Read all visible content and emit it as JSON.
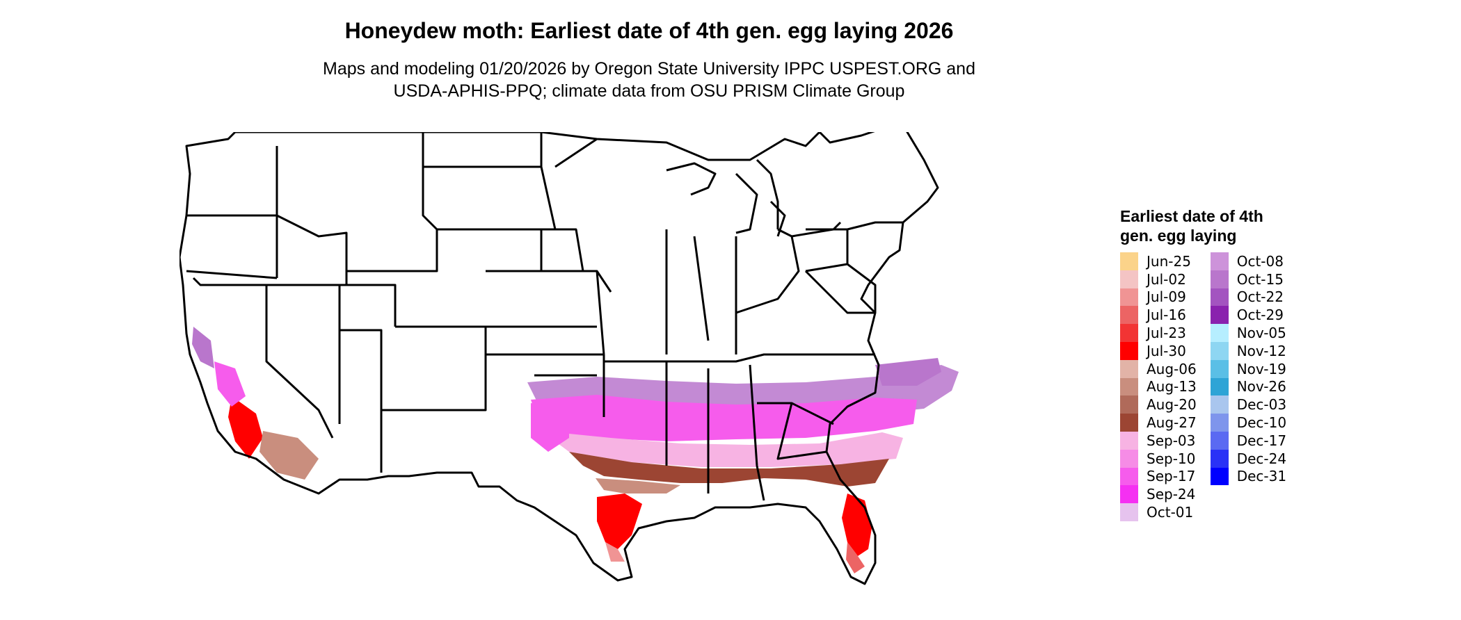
{
  "title": "Honeydew moth: Earliest date of 4th gen. egg laying 2026",
  "subtitle_line1": "Maps and modeling 01/20/2026 by Oregon State University IPPC USPEST.ORG and",
  "subtitle_line2": "USDA-APHIS-PPQ; climate data from OSU PRISM Climate Group",
  "legend": {
    "title": "Earliest date of 4th gen. egg laying",
    "items": [
      {
        "label": "Jun-25",
        "color": "#FBD38A"
      },
      {
        "label": "Jul-02",
        "color": "#F4C4C4"
      },
      {
        "label": "Jul-09",
        "color": "#F09494"
      },
      {
        "label": "Jul-16",
        "color": "#EC6464"
      },
      {
        "label": "Jul-23",
        "color": "#F23434"
      },
      {
        "label": "Jul-30",
        "color": "#FF0000"
      },
      {
        "label": "Aug-06",
        "color": "#E2B3A7"
      },
      {
        "label": "Aug-13",
        "color": "#C98E7E"
      },
      {
        "label": "Aug-20",
        "color": "#B06A5A"
      },
      {
        "label": "Aug-27",
        "color": "#9C4533"
      },
      {
        "label": "Sep-03",
        "color": "#F7B3E3"
      },
      {
        "label": "Sep-10",
        "color": "#F68CE6"
      },
      {
        "label": "Sep-17",
        "color": "#F65CEC"
      },
      {
        "label": "Sep-24",
        "color": "#F530F2"
      },
      {
        "label": "Oct-01",
        "color": "#E6C3EE"
      },
      {
        "label": "Oct-08",
        "color": "#CD93DA"
      },
      {
        "label": "Oct-15",
        "color": "#B976CC"
      },
      {
        "label": "Oct-22",
        "color": "#A354C0"
      },
      {
        "label": "Oct-29",
        "color": "#8A22AE"
      },
      {
        "label": "Nov-05",
        "color": "#B6EEFF"
      },
      {
        "label": "Nov-12",
        "color": "#8ED6F2"
      },
      {
        "label": "Nov-19",
        "color": "#5ABFE6"
      },
      {
        "label": "Nov-26",
        "color": "#2EA4D6"
      },
      {
        "label": "Dec-03",
        "color": "#A9C6EE"
      },
      {
        "label": "Dec-10",
        "color": "#7E95EC"
      },
      {
        "label": "Dec-17",
        "color": "#5A6AF2"
      },
      {
        "label": "Dec-24",
        "color": "#2A32F6"
      },
      {
        "label": "Dec-31",
        "color": "#0000FF"
      }
    ]
  },
  "map": {
    "outline_color": "#000000",
    "zones": {
      "far_south": "#FF0000",
      "south": "#9C4533",
      "south_mid": "#C98E7E",
      "gulf_band": "#F65CEC",
      "pink_band": "#F68CE6",
      "upper_band": "#B976CC",
      "fringe": "#8ED6F2"
    }
  }
}
